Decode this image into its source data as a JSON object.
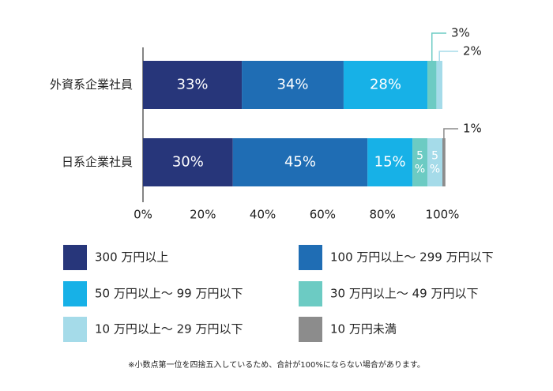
{
  "chart_data": {
    "type": "stacked-barh",
    "categories": [
      "外資系企業社員",
      "日系企業社員"
    ],
    "series": [
      {
        "name": "300 万円以上",
        "color": "#27367a",
        "values": [
          33,
          30
        ],
        "value_labels": [
          "33%",
          "30%"
        ]
      },
      {
        "name": "100 万円以上〜 299 万円以下",
        "color": "#1f6db4",
        "values": [
          34,
          45
        ],
        "value_labels": [
          "34%",
          "45%"
        ]
      },
      {
        "name": "50 万円以上〜 99 万円以下",
        "color": "#17b1e7",
        "values": [
          28,
          15
        ],
        "value_labels": [
          "28%",
          "15%"
        ]
      },
      {
        "name": "30 万円以上〜 49 万円以下",
        "color": "#6ccbc3",
        "values": [
          3,
          5
        ],
        "value_labels": [
          "3%",
          "5%"
        ]
      },
      {
        "name": "10 万円以上〜 29 万円以下",
        "color": "#a5dbe9",
        "values": [
          2,
          5
        ],
        "value_labels": [
          "2%",
          "5%"
        ]
      },
      {
        "name": "10 万円未満",
        "color": "#8c8c8c",
        "values": [
          0,
          1
        ],
        "value_labels": [
          null,
          "1%"
        ]
      }
    ],
    "xlim": [
      0,
      100
    ],
    "xticks": [
      {
        "value": 0,
        "label": "0%"
      },
      {
        "value": 20,
        "label": "20%"
      },
      {
        "value": 40,
        "label": "40%"
      },
      {
        "value": 60,
        "label": "60%"
      },
      {
        "value": 80,
        "label": "80%"
      },
      {
        "value": 100,
        "label": "100%"
      }
    ],
    "legend": "bottom",
    "note": "※小数点第一位を四捨五入しているため、合計が100%にならない場合があります。"
  }
}
